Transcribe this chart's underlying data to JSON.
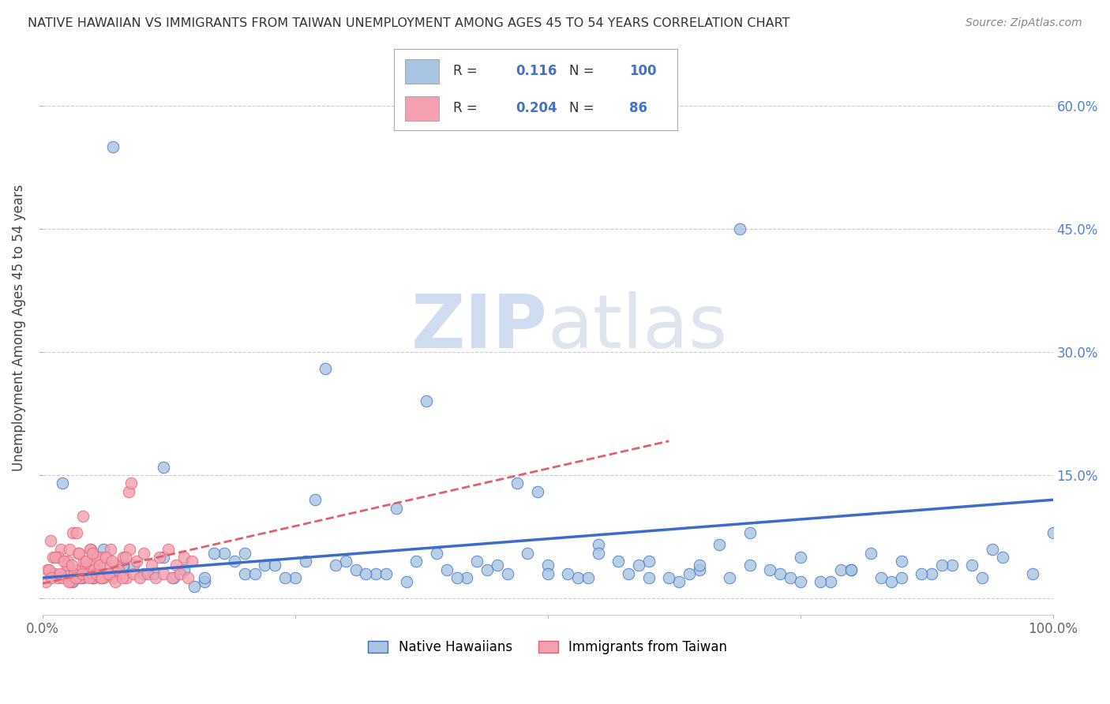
{
  "title": "NATIVE HAWAIIAN VS IMMIGRANTS FROM TAIWAN UNEMPLOYMENT AMONG AGES 45 TO 54 YEARS CORRELATION CHART",
  "source": "Source: ZipAtlas.com",
  "ylabel": "Unemployment Among Ages 45 to 54 years",
  "xlim": [
    0.0,
    1.0
  ],
  "ylim": [
    -0.02,
    0.68
  ],
  "xticks": [
    0.0,
    0.25,
    0.5,
    0.75,
    1.0
  ],
  "ytick_positions": [
    0.0,
    0.15,
    0.3,
    0.45,
    0.6
  ],
  "legend_label1": "Native Hawaiians",
  "legend_label2": "Immigrants from Taiwan",
  "R1": 0.116,
  "N1": 100,
  "R2": 0.204,
  "N2": 86,
  "color_blue": "#a8c4e0",
  "color_pink": "#f4a0b0",
  "line_color_blue": "#3b6cc7",
  "line_color_pink": "#e06070",
  "text_color_blue": "#4472c4",
  "text_color_num": "#4472c4",
  "background_color": "#ffffff",
  "grid_color": "#cccccc",
  "blue_scatter_x": [
    0.05,
    0.08,
    0.1,
    0.12,
    0.14,
    0.16,
    0.18,
    0.2,
    0.22,
    0.25,
    0.28,
    0.3,
    0.33,
    0.36,
    0.38,
    0.4,
    0.43,
    0.46,
    0.48,
    0.5,
    0.53,
    0.55,
    0.58,
    0.6,
    0.63,
    0.65,
    0.68,
    0.7,
    0.73,
    0.75,
    0.78,
    0.8,
    0.83,
    0.85,
    0.88,
    0.9,
    0.93,
    0.95,
    0.98,
    1.0,
    0.03,
    0.06,
    0.09,
    0.13,
    0.17,
    0.21,
    0.26,
    0.31,
    0.35,
    0.42,
    0.47,
    0.52,
    0.57,
    0.62,
    0.67,
    0.72,
    0.77,
    0.82,
    0.87,
    0.92,
    0.04,
    0.07,
    0.11,
    0.15,
    0.19,
    0.24,
    0.29,
    0.34,
    0.39,
    0.44,
    0.49,
    0.54,
    0.59,
    0.64,
    0.69,
    0.74,
    0.79,
    0.84,
    0.89,
    0.94,
    0.02,
    0.05,
    0.08,
    0.12,
    0.16,
    0.2,
    0.23,
    0.27,
    0.32,
    0.37,
    0.41,
    0.45,
    0.5,
    0.55,
    0.6,
    0.65,
    0.7,
    0.75,
    0.8,
    0.85
  ],
  "blue_scatter_y": [
    0.025,
    0.04,
    0.03,
    0.05,
    0.035,
    0.02,
    0.055,
    0.03,
    0.04,
    0.025,
    0.28,
    0.045,
    0.03,
    0.02,
    0.24,
    0.035,
    0.045,
    0.03,
    0.055,
    0.04,
    0.025,
    0.065,
    0.03,
    0.045,
    0.02,
    0.035,
    0.025,
    0.04,
    0.03,
    0.05,
    0.02,
    0.035,
    0.025,
    0.045,
    0.03,
    0.04,
    0.025,
    0.05,
    0.03,
    0.08,
    0.02,
    0.06,
    0.04,
    0.025,
    0.055,
    0.03,
    0.045,
    0.035,
    0.11,
    0.025,
    0.14,
    0.03,
    0.045,
    0.025,
    0.065,
    0.035,
    0.02,
    0.055,
    0.03,
    0.04,
    0.025,
    0.55,
    0.03,
    0.015,
    0.045,
    0.025,
    0.04,
    0.03,
    0.055,
    0.035,
    0.13,
    0.025,
    0.04,
    0.03,
    0.45,
    0.025,
    0.035,
    0.02,
    0.04,
    0.06,
    0.14,
    0.025,
    0.04,
    0.16,
    0.025,
    0.055,
    0.04,
    0.12,
    0.03,
    0.045,
    0.025,
    0.04,
    0.03,
    0.055,
    0.025,
    0.04,
    0.08,
    0.02,
    0.035,
    0.025
  ],
  "pink_scatter_x": [
    0.005,
    0.01,
    0.015,
    0.018,
    0.022,
    0.025,
    0.028,
    0.03,
    0.032,
    0.035,
    0.038,
    0.04,
    0.042,
    0.045,
    0.048,
    0.05,
    0.052,
    0.055,
    0.058,
    0.06,
    0.008,
    0.012,
    0.016,
    0.02,
    0.024,
    0.027,
    0.031,
    0.034,
    0.037,
    0.041,
    0.044,
    0.047,
    0.051,
    0.054,
    0.057,
    0.061,
    0.064,
    0.067,
    0.07,
    0.073,
    0.076,
    0.08,
    0.083,
    0.086,
    0.09,
    0.093,
    0.096,
    0.1,
    0.104,
    0.108,
    0.112,
    0.116,
    0.12,
    0.124,
    0.128,
    0.132,
    0.136,
    0.14,
    0.144,
    0.148,
    0.003,
    0.006,
    0.009,
    0.013,
    0.017,
    0.021,
    0.026,
    0.029,
    0.033,
    0.036,
    0.039,
    0.043,
    0.046,
    0.049,
    0.053,
    0.056,
    0.059,
    0.063,
    0.066,
    0.069,
    0.072,
    0.075,
    0.079,
    0.082,
    0.085,
    0.088
  ],
  "pink_scatter_y": [
    0.035,
    0.05,
    0.025,
    0.06,
    0.03,
    0.045,
    0.02,
    0.08,
    0.035,
    0.055,
    0.025,
    0.1,
    0.04,
    0.03,
    0.06,
    0.025,
    0.045,
    0.035,
    0.05,
    0.025,
    0.07,
    0.03,
    0.05,
    0.025,
    0.04,
    0.06,
    0.03,
    0.08,
    0.025,
    0.045,
    0.03,
    0.06,
    0.035,
    0.05,
    0.025,
    0.04,
    0.03,
    0.06,
    0.025,
    0.04,
    0.03,
    0.05,
    0.025,
    0.06,
    0.03,
    0.045,
    0.025,
    0.055,
    0.03,
    0.04,
    0.025,
    0.05,
    0.03,
    0.06,
    0.025,
    0.04,
    0.03,
    0.05,
    0.025,
    0.045,
    0.02,
    0.035,
    0.025,
    0.05,
    0.03,
    0.045,
    0.02,
    0.04,
    0.025,
    0.055,
    0.03,
    0.045,
    0.025,
    0.055,
    0.03,
    0.04,
    0.025,
    0.05,
    0.03,
    0.045,
    0.02,
    0.035,
    0.025,
    0.05,
    0.13,
    0.14
  ]
}
